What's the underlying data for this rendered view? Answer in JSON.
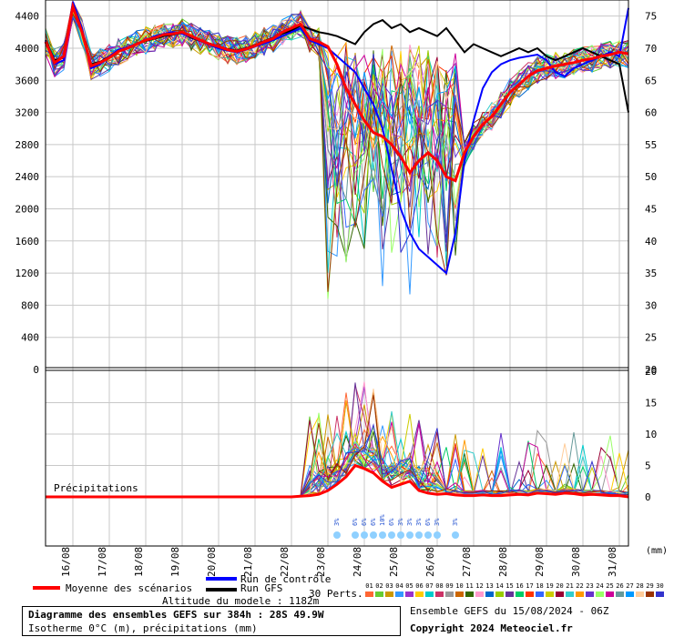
{
  "chart_data": [
    {
      "type": "line",
      "title": "Diagramme des ensembles GEFS sur 384h : 28S 49.9W",
      "subtitle": "Isotherme 0°C (m), précipitations (mm)",
      "y_left_ticks": [
        "4400",
        "4000",
        "3600",
        "3200",
        "2800",
        "2400",
        "2000",
        "1600",
        "1200",
        "800",
        "400",
        "0"
      ],
      "y_right_ticks": [
        "75",
        "70",
        "65",
        "60",
        "55",
        "50",
        "45",
        "40",
        "35",
        "30",
        "25",
        "20"
      ],
      "ylim": [
        0,
        4600
      ],
      "x_ticks": [
        "16/08",
        "17/08",
        "18/08",
        "19/08",
        "20/08",
        "21/08",
        "22/08",
        "23/08",
        "24/08",
        "25/08",
        "26/08",
        "27/08",
        "28/08",
        "29/08",
        "30/08",
        "31/08"
      ],
      "xlim_hours": [
        0,
        384
      ],
      "series": [
        {
          "name": "Moyenne des scénarios",
          "color": "#ff0000",
          "x": [
            0,
            6,
            12,
            18,
            24,
            30,
            36,
            42,
            48,
            54,
            60,
            66,
            72,
            78,
            84,
            90,
            96,
            102,
            108,
            114,
            120,
            126,
            132,
            138,
            144,
            150,
            156,
            162,
            168,
            174,
            180,
            186,
            192,
            198,
            204,
            210,
            216,
            222,
            228,
            234,
            240,
            246,
            252,
            258,
            264,
            270,
            276,
            282,
            288,
            294,
            300,
            306,
            312,
            318,
            324,
            330,
            336,
            342,
            348,
            354,
            360,
            366,
            372,
            378,
            384
          ],
          "values": [
            4080,
            3820,
            3900,
            4520,
            4200,
            3780,
            3820,
            3880,
            3960,
            4000,
            4050,
            4100,
            4130,
            4170,
            4180,
            4200,
            4150,
            4100,
            4050,
            4020,
            3980,
            3960,
            3990,
            4030,
            4080,
            4120,
            4200,
            4250,
            4300,
            4120,
            4080,
            4020,
            3800,
            3500,
            3300,
            3100,
            2950,
            2900,
            2800,
            2650,
            2450,
            2600,
            2700,
            2600,
            2400,
            2350,
            2700,
            2900,
            3050,
            3150,
            3300,
            3450,
            3550,
            3650,
            3720,
            3750,
            3780,
            3800,
            3820,
            3850,
            3870,
            3900,
            3920,
            3950,
            3930
          ]
        },
        {
          "name": "Run de contrôle",
          "color": "#0000ff",
          "x": [
            0,
            6,
            12,
            18,
            24,
            30,
            36,
            42,
            48,
            54,
            60,
            66,
            72,
            78,
            84,
            90,
            96,
            102,
            108,
            114,
            120,
            126,
            132,
            138,
            144,
            150,
            156,
            162,
            168,
            174,
            180,
            186,
            192,
            198,
            204,
            210,
            216,
            222,
            228,
            234,
            240,
            246,
            252,
            258,
            264,
            270,
            276,
            282,
            288,
            294,
            300,
            306,
            312,
            318,
            324,
            330,
            336,
            342,
            348,
            354,
            360,
            366,
            372,
            378,
            384
          ],
          "values": [
            4090,
            3800,
            3850,
            4580,
            4250,
            3750,
            3800,
            3900,
            3980,
            4010,
            4060,
            4100,
            4150,
            4180,
            4200,
            4180,
            4140,
            4090,
            4040,
            4000,
            3970,
            3950,
            3980,
            4020,
            4060,
            4100,
            4150,
            4200,
            4250,
            4100,
            4050,
            4000,
            3900,
            3800,
            3700,
            3500,
            3300,
            3000,
            2500,
            2000,
            1700,
            1500,
            1400,
            1300,
            1200,
            1700,
            2600,
            3100,
            3500,
            3700,
            3800,
            3850,
            3880,
            3900,
            3920,
            3850,
            3700,
            3650,
            3750,
            3800,
            3850,
            3900,
            3950,
            3900,
            4500
          ]
        },
        {
          "name": "Run GFS",
          "color": "#000000",
          "x": [
            0,
            6,
            12,
            18,
            24,
            30,
            36,
            42,
            48,
            54,
            60,
            66,
            72,
            78,
            84,
            90,
            96,
            102,
            108,
            114,
            120,
            126,
            132,
            138,
            144,
            150,
            156,
            162,
            168,
            174,
            180,
            186,
            192,
            198,
            204,
            210,
            216,
            222,
            228,
            234,
            240,
            246,
            252,
            258,
            264,
            270,
            276,
            282,
            288,
            294,
            300,
            306,
            312,
            318,
            324,
            330,
            336,
            342,
            348,
            354,
            360,
            366,
            372,
            378,
            384
          ],
          "values": [
            4100,
            3850,
            3880,
            4550,
            4220,
            3800,
            3830,
            3900,
            3970,
            4000,
            4050,
            4090,
            4120,
            4150,
            4170,
            4190,
            4130,
            4090,
            4060,
            4020,
            3990,
            3970,
            4000,
            4040,
            4090,
            4130,
            4180,
            4220,
            4280,
            4240,
            4200,
            4180,
            4150,
            4100,
            4050,
            4200,
            4300,
            4350,
            4250,
            4300,
            4200,
            4250,
            4200,
            4150,
            4250,
            4100,
            3950,
            4050,
            4000,
            3950,
            3900,
            3950,
            4000,
            3950,
            4000,
            3900,
            3850,
            3900,
            3950,
            4000,
            3950,
            3900,
            3850,
            3800,
            3200
          ]
        }
      ],
      "precip_series": {
        "name": "Précipitations",
        "color": "#ff0000",
        "x": [
          0,
          6,
          12,
          18,
          24,
          30,
          36,
          42,
          48,
          54,
          60,
          66,
          72,
          78,
          84,
          90,
          96,
          102,
          108,
          114,
          120,
          126,
          132,
          138,
          144,
          150,
          156,
          162,
          168,
          174,
          180,
          186,
          192,
          198,
          204,
          210,
          216,
          222,
          228,
          234,
          240,
          246,
          252,
          258,
          264,
          270,
          276,
          282,
          288,
          294,
          300,
          306,
          312,
          318,
          324,
          330,
          336,
          342,
          348,
          354,
          360,
          366,
          372,
          378,
          384
        ],
        "values": [
          0,
          0,
          0,
          0,
          0,
          0,
          0,
          0,
          0,
          0,
          0,
          0,
          0,
          0,
          0,
          0,
          0,
          0,
          0,
          0,
          0,
          0,
          0,
          0,
          0,
          0,
          0,
          0,
          0.1,
          0.2,
          0.4,
          1.0,
          2.0,
          3.2,
          5.0,
          4.5,
          3.8,
          2.5,
          1.5,
          2.0,
          2.5,
          1.0,
          0.6,
          0.4,
          0.5,
          0.3,
          0.2,
          0.2,
          0.3,
          0.2,
          0.2,
          0.3,
          0.4,
          0.3,
          0.6,
          0.5,
          0.4,
          0.6,
          0.5,
          0.3,
          0.4,
          0.3,
          0.2,
          0.2,
          0
        ]
      },
      "precip_ticks": [
        "20",
        "15",
        "10",
        "5",
        "0"
      ],
      "precip_unit": "(mm)"
    }
  ],
  "legend": {
    "mean": "Moyenne des scénarios",
    "control": "Run de contrôle",
    "gfs": "Run GFS",
    "perts": "30 Perts.",
    "pert_numbers": [
      "01",
      "02",
      "03",
      "04",
      "05",
      "06",
      "07",
      "08",
      "09",
      "10",
      "11",
      "12",
      "13",
      "14",
      "15",
      "16",
      "17",
      "18",
      "19",
      "20",
      "21",
      "22",
      "23",
      "24",
      "25",
      "26",
      "27",
      "28",
      "29",
      "30"
    ],
    "pert_colors": [
      "#ff6633",
      "#66cc33",
      "#cc9900",
      "#3399ff",
      "#9933cc",
      "#ffcc00",
      "#00cccc",
      "#cc3366",
      "#999999",
      "#cc6600",
      "#336600",
      "#ff99cc",
      "#0066cc",
      "#99cc00",
      "#663399",
      "#00cc66",
      "#ff3300",
      "#3366ff",
      "#cccc00",
      "#990033",
      "#33cccc",
      "#ff9900",
      "#6633cc",
      "#99ff66",
      "#cc0099",
      "#669999",
      "#0099ff",
      "#ffcc99",
      "#993300",
      "#3333cc"
    ]
  },
  "snow": {
    "labels": [
      "3%",
      "6%",
      "6%",
      "6%",
      "10%",
      "6%",
      "3%",
      "3%",
      "3%",
      "6%",
      "3%",
      "3%"
    ],
    "hours": [
      192,
      204,
      210,
      216,
      222,
      228,
      234,
      240,
      246,
      252,
      258,
      270
    ]
  },
  "precip_label": "Précipitations",
  "footer": {
    "title": "Diagramme des ensembles GEFS sur 384h : 28S 49.9W",
    "subtitle": "Isotherme 0°C (m), précipitations (mm)",
    "altitude": "Altitude du modele : 1182m",
    "run": "Ensemble GEFS du 15/08/2024 - 06Z",
    "copyright": "Copyright 2024 Meteociel.fr"
  }
}
